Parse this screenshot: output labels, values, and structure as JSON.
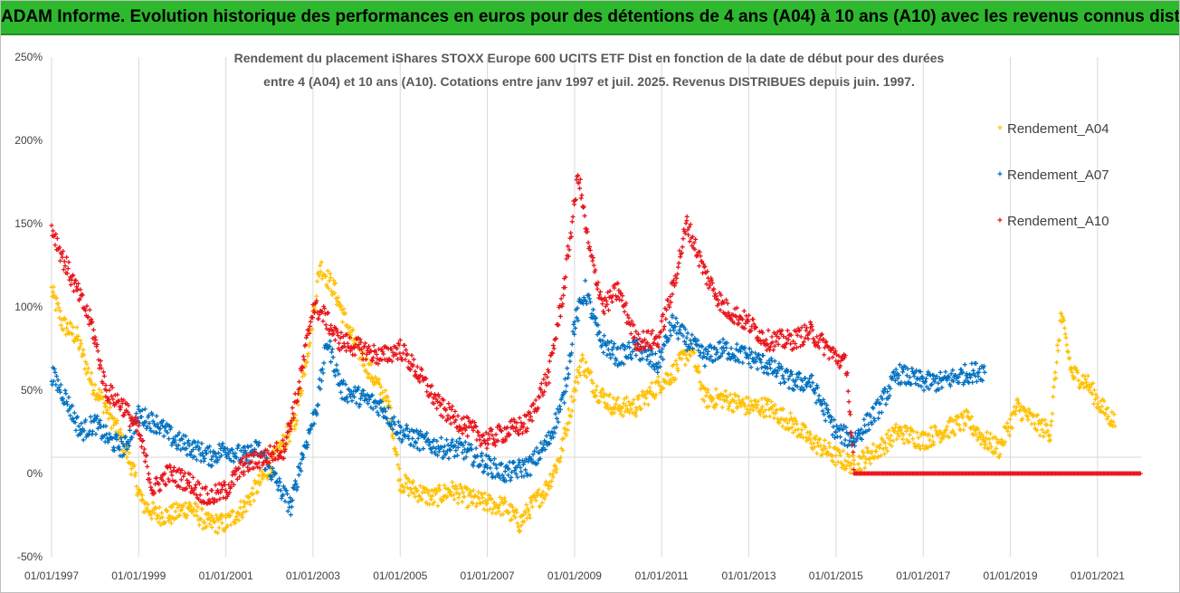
{
  "banner": {
    "title": "ADAM Informe. Evolution historique des performances en euros pour des détentions de 4 ans (A04) à 10 ans (A10) avec les revenus connus distribués"
  },
  "chart_data": {
    "type": "scatter",
    "title_line1": "Rendement du placement iShares STOXX Europe 600 UCITS ETF Dist en fonction de la date de début pour des durées",
    "title_line2": "entre 4 (A04) et 10 ans (A10).  Cotations entre janv 1997 et juil. 2025. Revenus DISTRIBUES depuis juin. 1997.",
    "x_axis": {
      "type": "date",
      "range": [
        "1997-01-01",
        "2022-01-01"
      ],
      "tick_labels": [
        "01/01/1997",
        "01/01/1999",
        "01/01/2001",
        "01/01/2003",
        "01/01/2005",
        "01/01/2007",
        "01/01/2009",
        "01/01/2011",
        "01/01/2013",
        "01/01/2015",
        "01/01/2017",
        "01/01/2019",
        "01/01/2021"
      ]
    },
    "y_axis": {
      "range": [
        -50,
        250
      ],
      "tick_labels": [
        "250%",
        "200%",
        "150%",
        "100%",
        "50%",
        "0%",
        "-50%"
      ],
      "tick_values": [
        250,
        200,
        150,
        100,
        50,
        0,
        -50
      ]
    },
    "grid": "vertical",
    "legend_position": "right",
    "series": [
      {
        "name": "Rendement_A04",
        "color": "#ffc000",
        "points": [
          [
            "1997-01-01",
            110
          ],
          [
            "1997-04-01",
            90
          ],
          [
            "1997-08-01",
            82
          ],
          [
            "1997-12-01",
            55
          ],
          [
            "1998-04-01",
            40
          ],
          [
            "1998-08-01",
            22
          ],
          [
            "1998-11-01",
            5
          ],
          [
            "1999-02-01",
            -18
          ],
          [
            "1999-06-01",
            -25
          ],
          [
            "1999-10-01",
            -25
          ],
          [
            "2000-03-01",
            -20
          ],
          [
            "2000-08-01",
            -30
          ],
          [
            "2001-01-01",
            -30
          ],
          [
            "2001-06-01",
            -20
          ],
          [
            "2001-12-01",
            0
          ],
          [
            "2002-04-01",
            15
          ],
          [
            "2002-08-01",
            30
          ],
          [
            "2002-12-01",
            80
          ],
          [
            "2003-03-01",
            125
          ],
          [
            "2003-07-01",
            110
          ],
          [
            "2003-11-01",
            85
          ],
          [
            "2004-05-01",
            60
          ],
          [
            "2004-10-01",
            40
          ],
          [
            "2005-01-01",
            -5
          ],
          [
            "2005-05-01",
            -10
          ],
          [
            "2005-10-01",
            -15
          ],
          [
            "2006-03-01",
            -10
          ],
          [
            "2006-08-01",
            -15
          ],
          [
            "2007-01-01",
            -18
          ],
          [
            "2007-06-01",
            -20
          ],
          [
            "2007-10-01",
            -30
          ],
          [
            "2008-01-01",
            -20
          ],
          [
            "2008-05-01",
            -10
          ],
          [
            "2008-09-01",
            10
          ],
          [
            "2009-01-01",
            50
          ],
          [
            "2009-03-01",
            68
          ],
          [
            "2009-07-01",
            50
          ],
          [
            "2009-12-01",
            40
          ],
          [
            "2010-06-01",
            40
          ],
          [
            "2011-01-01",
            55
          ],
          [
            "2011-04-01",
            60
          ],
          [
            "2011-09-01",
            75
          ],
          [
            "2012-01-01",
            45
          ],
          [
            "2012-06-01",
            45
          ],
          [
            "2013-01-01",
            40
          ],
          [
            "2013-06-01",
            40
          ],
          [
            "2014-01-01",
            30
          ],
          [
            "2014-06-01",
            20
          ],
          [
            "2015-01-01",
            10
          ],
          [
            "2015-06-01",
            5
          ],
          [
            "2016-01-01",
            15
          ],
          [
            "2016-06-01",
            25
          ],
          [
            "2017-01-01",
            20
          ],
          [
            "2017-06-01",
            25
          ],
          [
            "2018-01-01",
            32
          ],
          [
            "2018-06-01",
            20
          ],
          [
            "2018-10-01",
            15
          ],
          [
            "2019-03-01",
            40
          ],
          [
            "2019-08-01",
            30
          ],
          [
            "2019-12-01",
            25
          ],
          [
            "2020-03-01",
            95
          ],
          [
            "2020-06-01",
            60
          ],
          [
            "2020-10-01",
            55
          ],
          [
            "2021-02-01",
            40
          ],
          [
            "2021-06-01",
            30
          ]
        ]
      },
      {
        "name": "Rendement_A07",
        "color": "#0070c0",
        "points": [
          [
            "1997-01-01",
            60
          ],
          [
            "1997-05-01",
            45
          ],
          [
            "1997-09-01",
            25
          ],
          [
            "1998-01-01",
            30
          ],
          [
            "1998-05-01",
            20
          ],
          [
            "1998-09-01",
            15
          ],
          [
            "1999-01-01",
            35
          ],
          [
            "1999-06-01",
            30
          ],
          [
            "1999-11-01",
            20
          ],
          [
            "2000-04-01",
            15
          ],
          [
            "2000-09-01",
            10
          ],
          [
            "2001-01-01",
            15
          ],
          [
            "2001-06-01",
            10
          ],
          [
            "2001-10-01",
            15
          ],
          [
            "2002-03-01",
            -5
          ],
          [
            "2002-07-01",
            -20
          ],
          [
            "2002-10-01",
            10
          ],
          [
            "2003-02-01",
            40
          ],
          [
            "2003-05-01",
            80
          ],
          [
            "2003-09-01",
            50
          ],
          [
            "2004-03-01",
            45
          ],
          [
            "2004-08-01",
            40
          ],
          [
            "2005-01-01",
            25
          ],
          [
            "2005-06-01",
            20
          ],
          [
            "2006-01-01",
            15
          ],
          [
            "2006-06-01",
            15
          ],
          [
            "2007-01-01",
            5
          ],
          [
            "2007-06-01",
            0
          ],
          [
            "2008-01-01",
            5
          ],
          [
            "2008-06-01",
            20
          ],
          [
            "2008-10-01",
            45
          ],
          [
            "2009-01-01",
            90
          ],
          [
            "2009-04-01",
            110
          ],
          [
            "2009-08-01",
            80
          ],
          [
            "2010-01-01",
            70
          ],
          [
            "2010-06-01",
            75
          ],
          [
            "2010-12-01",
            65
          ],
          [
            "2011-04-01",
            90
          ],
          [
            "2011-08-01",
            80
          ],
          [
            "2012-01-01",
            70
          ],
          [
            "2012-06-01",
            75
          ],
          [
            "2013-01-01",
            70
          ],
          [
            "2013-06-01",
            65
          ],
          [
            "2014-01-01",
            55
          ],
          [
            "2014-06-01",
            55
          ],
          [
            "2015-01-01",
            25
          ],
          [
            "2015-06-01",
            20
          ],
          [
            "2016-01-01",
            40
          ],
          [
            "2016-06-01",
            60
          ],
          [
            "2017-01-01",
            55
          ],
          [
            "2017-06-01",
            55
          ],
          [
            "2018-01-01",
            60
          ],
          [
            "2018-06-01",
            62
          ]
        ]
      },
      {
        "name": "Rendement_A10",
        "color": "#e8141b",
        "points": [
          [
            "1997-01-01",
            148
          ],
          [
            "1997-04-01",
            130
          ],
          [
            "1997-08-01",
            110
          ],
          [
            "1997-12-01",
            90
          ],
          [
            "1998-04-01",
            50
          ],
          [
            "1998-09-01",
            40
          ],
          [
            "1999-01-01",
            25
          ],
          [
            "1999-05-01",
            -10
          ],
          [
            "1999-09-01",
            0
          ],
          [
            "2000-03-01",
            -5
          ],
          [
            "2000-08-01",
            -15
          ],
          [
            "2001-01-01",
            -10
          ],
          [
            "2001-06-01",
            5
          ],
          [
            "2001-12-01",
            10
          ],
          [
            "2002-05-01",
            15
          ],
          [
            "2002-09-01",
            50
          ],
          [
            "2003-01-01",
            100
          ],
          [
            "2003-04-01",
            95
          ],
          [
            "2003-08-01",
            80
          ],
          [
            "2004-02-01",
            75
          ],
          [
            "2004-08-01",
            70
          ],
          [
            "2005-01-01",
            75
          ],
          [
            "2005-06-01",
            60
          ],
          [
            "2005-12-01",
            40
          ],
          [
            "2006-06-01",
            30
          ],
          [
            "2007-01-01",
            20
          ],
          [
            "2007-06-01",
            25
          ],
          [
            "2007-12-01",
            30
          ],
          [
            "2008-06-01",
            60
          ],
          [
            "2008-10-01",
            110
          ],
          [
            "2009-02-01",
            180
          ],
          [
            "2009-05-01",
            135
          ],
          [
            "2009-09-01",
            100
          ],
          [
            "2010-01-01",
            110
          ],
          [
            "2010-06-01",
            80
          ],
          [
            "2010-12-01",
            80
          ],
          [
            "2011-04-01",
            110
          ],
          [
            "2011-08-01",
            150
          ],
          [
            "2012-01-01",
            120
          ],
          [
            "2012-06-01",
            100
          ],
          [
            "2013-01-01",
            90
          ],
          [
            "2013-06-01",
            80
          ],
          [
            "2014-01-01",
            80
          ],
          [
            "2014-06-01",
            85
          ],
          [
            "2015-01-01",
            70
          ],
          [
            "2015-04-01",
            65
          ],
          [
            "2015-06-01",
            0
          ],
          [
            "2022-01-01",
            0
          ]
        ]
      }
    ]
  }
}
